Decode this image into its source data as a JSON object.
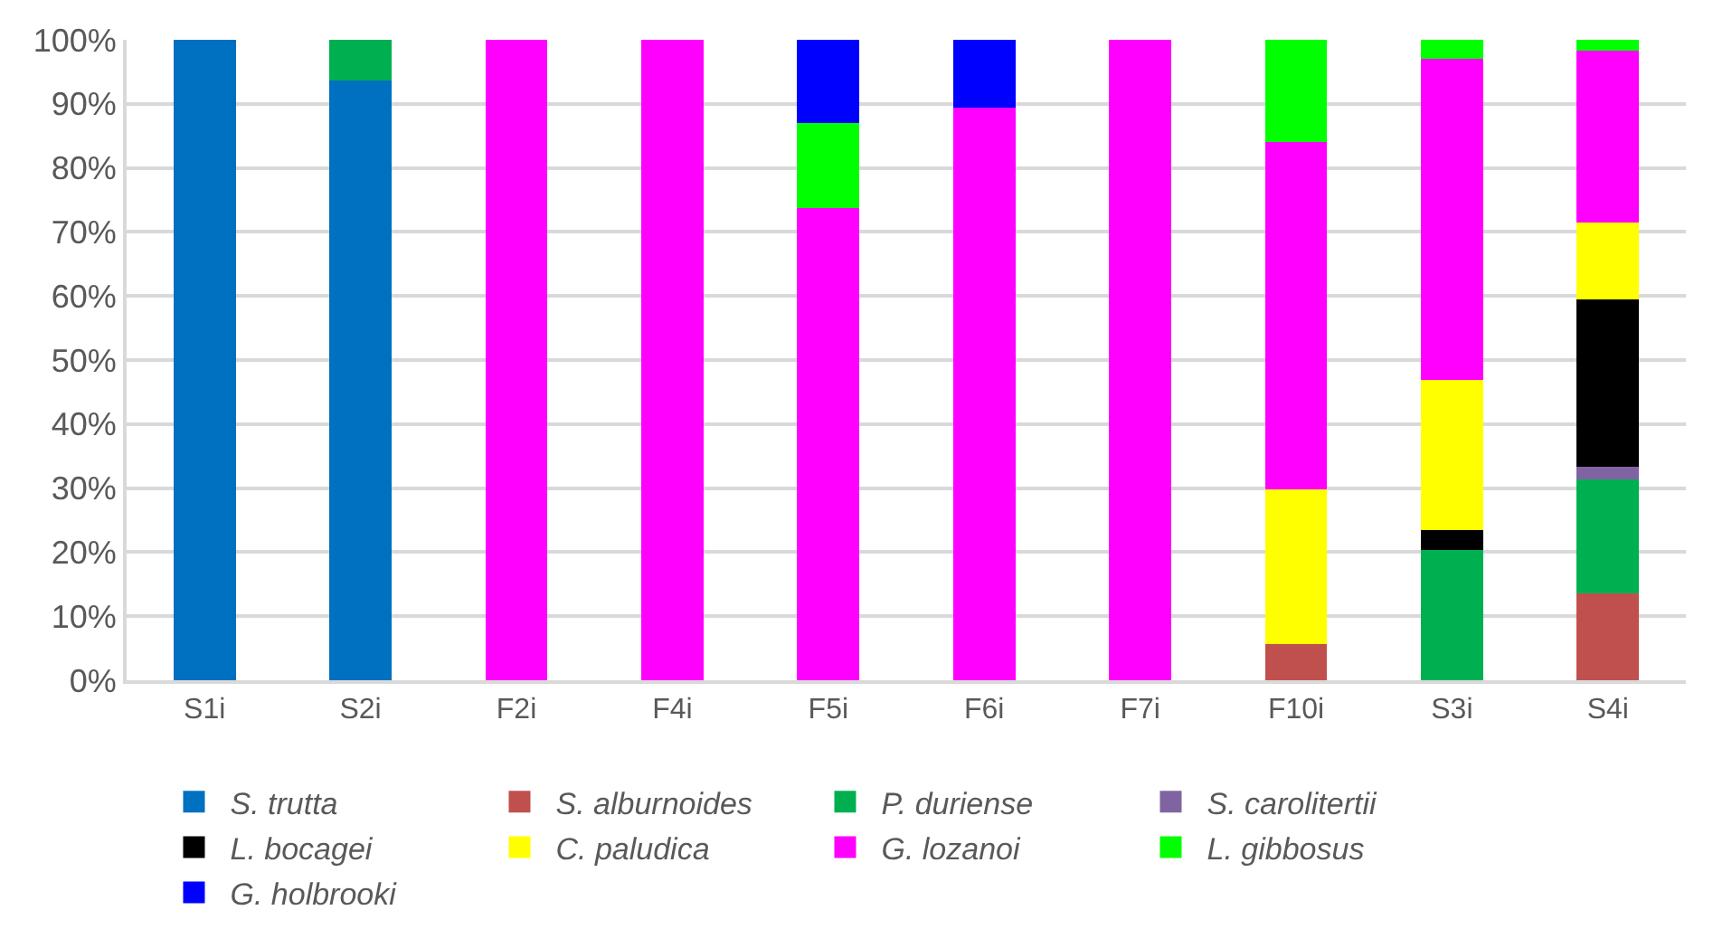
{
  "chart_data": {
    "type": "bar",
    "stacked": true,
    "categories": [
      "S1i",
      "S2i",
      "F2i",
      "F4i",
      "F5i",
      "F6i",
      "F7i",
      "F10i",
      "S3i",
      "S4i"
    ],
    "series": [
      {
        "name": "S. trutta",
        "color": "#0070c0",
        "values": [
          100,
          93.7,
          null,
          null,
          null,
          null,
          null,
          null,
          null,
          null
        ]
      },
      {
        "name": "S. alburnoides",
        "color": "#c0504d",
        "values": [
          null,
          null,
          null,
          null,
          null,
          null,
          null,
          5.7,
          null,
          13.6
        ]
      },
      {
        "name": "P. duriense",
        "color": "#00b050",
        "values": [
          null,
          6.3,
          null,
          null,
          null,
          null,
          null,
          null,
          20.4,
          17.7
        ]
      },
      {
        "name": "S. carolitertii",
        "color": "#8064a2",
        "values": [
          null,
          null,
          null,
          null,
          null,
          null,
          null,
          null,
          null,
          2.0
        ]
      },
      {
        "name": "L. bocagei",
        "color": "#000000",
        "values": [
          null,
          null,
          null,
          null,
          null,
          null,
          null,
          null,
          3.0,
          26.1
        ]
      },
      {
        "name": "C. paludica",
        "color": "#ffff00",
        "values": [
          null,
          null,
          null,
          null,
          null,
          null,
          null,
          24.1,
          23.5,
          12.1
        ]
      },
      {
        "name": "G. lozanoi",
        "color": "#ff00ff",
        "values": [
          null,
          null,
          100,
          100,
          73.8,
          89.4,
          100,
          54.2,
          50.1,
          26.8
        ]
      },
      {
        "name": "L. gibbosus",
        "color": "#00ff00",
        "values": [
          null,
          null,
          null,
          null,
          13.2,
          null,
          null,
          16.0,
          3.0,
          1.7
        ]
      },
      {
        "name": "G. holbrooki",
        "color": "#0000ff",
        "values": [
          null,
          null,
          null,
          null,
          13.0,
          10.6,
          null,
          null,
          null,
          null
        ]
      }
    ],
    "ylim": [
      0,
      100
    ],
    "yticks": [
      {
        "value": 0,
        "label": "0%"
      },
      {
        "value": 10,
        "label": "10%"
      },
      {
        "value": 20,
        "label": "20%"
      },
      {
        "value": 30,
        "label": "30%"
      },
      {
        "value": 40,
        "label": "40%"
      },
      {
        "value": 50,
        "label": "50%"
      },
      {
        "value": 60,
        "label": "60%"
      },
      {
        "value": 70,
        "label": "70%"
      },
      {
        "value": 80,
        "label": "80%"
      },
      {
        "value": 90,
        "label": "90%"
      },
      {
        "value": 100,
        "label": "100%"
      }
    ],
    "grid": "y",
    "legend": "bottom"
  }
}
